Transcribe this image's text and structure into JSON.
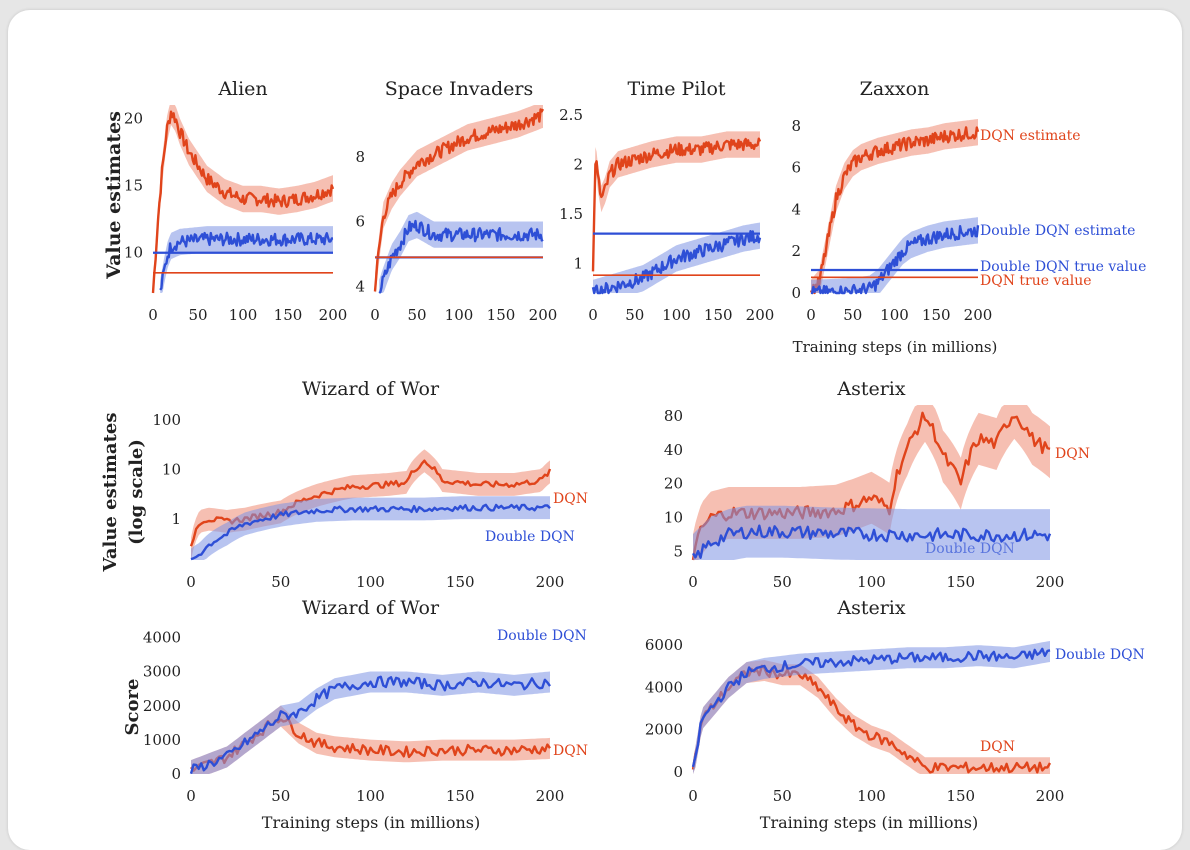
{
  "colors": {
    "dqn": "#e0441b",
    "ddqn": "#2e4fd6",
    "dqn_band": "#ee8a72",
    "ddqn_band": "#7e93e4"
  },
  "labels": {
    "value_estimates": "Value estimates",
    "value_estimates_log_1": "Value estimates",
    "value_estimates_log_2": "(log scale)",
    "score": "Score",
    "training_steps": "Training steps (in millions)",
    "dqn_estimate": "DQN estimate",
    "ddqn_estimate": "Double DQN estimate",
    "ddqn_true": "Double DQN true value",
    "dqn_true": "DQN true value",
    "dqn": "DQN",
    "ddqn": "Double DQN"
  },
  "chart_data": [
    {
      "id": "alien",
      "type": "line",
      "title": "Alien",
      "ylabel": "Value estimates",
      "xlim": [
        0,
        200
      ],
      "ylim": [
        7,
        21
      ],
      "xticks": [
        "0",
        "50",
        "100",
        "150",
        "200"
      ],
      "yticks": [
        10,
        15,
        20
      ],
      "series": [
        {
          "x": [
            0,
            5,
            10,
            15,
            20,
            25,
            30,
            40,
            60,
            80,
            100,
            120,
            140,
            160,
            180,
            200
          ],
          "y": [
            7,
            12,
            16,
            19,
            20.5,
            20,
            19,
            17.5,
            15.5,
            14.5,
            14,
            14,
            13.8,
            14,
            14.3,
            14.8
          ]
        },
        {
          "x": [
            8,
            12,
            16,
            20,
            30,
            60,
            100,
            150,
            200
          ],
          "y": [
            7,
            8.5,
            9.8,
            10.5,
            10.8,
            11,
            11,
            11,
            11
          ]
        }
      ],
      "true_values": [
        10,
        8.5
      ]
    },
    {
      "id": "space_invaders",
      "type": "line",
      "title": "Space Invaders",
      "xlim": [
        0,
        200
      ],
      "ylim": [
        3.8,
        9.6
      ],
      "xticks": [
        "0",
        "50",
        "100",
        "150",
        "200"
      ],
      "yticks": [
        4,
        6,
        8
      ],
      "series": [
        {
          "x": [
            0,
            5,
            10,
            20,
            30,
            50,
            80,
            110,
            140,
            170,
            200
          ],
          "y": [
            4,
            5.2,
            6.2,
            6.8,
            7.2,
            7.8,
            8.2,
            8.6,
            8.8,
            9.0,
            9.3
          ]
        },
        {
          "x": [
            5,
            10,
            20,
            30,
            40,
            50,
            70,
            100,
            130,
            160,
            200
          ],
          "y": [
            3.8,
            4.2,
            4.9,
            5.3,
            5.8,
            5.9,
            5.6,
            5.6,
            5.6,
            5.6,
            5.6
          ]
        }
      ],
      "true_values": [
        4.9,
        4.9
      ]
    },
    {
      "id": "time_pilot",
      "type": "line",
      "title": "Time Pilot",
      "xlim": [
        0,
        200
      ],
      "ylim": [
        0.7,
        2.6
      ],
      "xticks": [
        "0",
        "50",
        "100",
        "150",
        "200"
      ],
      "yticks": [
        1.0,
        1.5,
        2.0,
        2.5
      ],
      "series": [
        {
          "x": [
            0,
            3,
            6,
            10,
            15,
            20,
            30,
            50,
            70,
            100,
            130,
            160,
            200
          ],
          "y": [
            0.9,
            2.1,
            1.85,
            1.65,
            1.75,
            1.9,
            2.0,
            2.05,
            2.1,
            2.15,
            2.15,
            2.2,
            2.2
          ]
        },
        {
          "x": [
            0,
            20,
            40,
            60,
            80,
            100,
            120,
            140,
            160,
            180,
            200
          ],
          "y": [
            0.7,
            0.75,
            0.8,
            0.85,
            0.95,
            1.05,
            1.1,
            1.15,
            1.2,
            1.25,
            1.28
          ]
        }
      ],
      "true_values": [
        1.3,
        0.88
      ]
    },
    {
      "id": "zaxxon",
      "type": "line",
      "title": "Zaxxon",
      "xlim": [
        0,
        200
      ],
      "ylim": [
        0,
        9
      ],
      "xticks": [
        "0",
        "50",
        "100",
        "150",
        "200"
      ],
      "yticks": [
        0,
        2,
        4,
        6,
        8
      ],
      "series": [
        {
          "x": [
            0,
            10,
            20,
            30,
            40,
            50,
            60,
            80,
            100,
            120,
            140,
            160,
            180,
            200
          ],
          "y": [
            0,
            0.5,
            2.5,
            4.5,
            5.6,
            6.2,
            6.5,
            6.8,
            7.0,
            7.2,
            7.3,
            7.5,
            7.6,
            7.7
          ]
        },
        {
          "x": [
            0,
            30,
            50,
            70,
            80,
            90,
            100,
            110,
            120,
            140,
            160,
            180,
            200
          ],
          "y": [
            0,
            0.05,
            0.1,
            0.2,
            0.5,
            1.0,
            1.5,
            2.0,
            2.3,
            2.6,
            2.8,
            2.9,
            3.0
          ]
        }
      ],
      "true_values": [
        1.1,
        0.75
      ]
    },
    {
      "id": "wizard_value",
      "type": "line",
      "title": "Wizard of Wor",
      "scale": "log",
      "ylabel": "Value estimates (log scale)",
      "xlim": [
        0,
        200
      ],
      "ylim": [
        0.15,
        200
      ],
      "xticks": [
        "0",
        "50",
        "100",
        "150",
        "200"
      ],
      "yticks": [
        1,
        10,
        100
      ],
      "series": [
        {
          "name": "DQN",
          "x": [
            0,
            5,
            10,
            20,
            30,
            50,
            70,
            90,
            110,
            120,
            130,
            140,
            160,
            180,
            195,
            200
          ],
          "y": [
            0.25,
            0.9,
            1.0,
            0.9,
            1.0,
            1.4,
            3,
            4.5,
            5,
            5.5,
            15,
            6,
            5,
            5,
            6,
            9
          ]
        },
        {
          "name": "Double DQN",
          "x": [
            0,
            5,
            10,
            20,
            30,
            50,
            70,
            90,
            110,
            130,
            150,
            170,
            200
          ],
          "y": [
            0.15,
            0.2,
            0.3,
            0.5,
            0.8,
            1.2,
            1.5,
            1.6,
            1.6,
            1.6,
            1.7,
            1.7,
            1.7
          ]
        }
      ]
    },
    {
      "id": "asterix_value",
      "type": "line",
      "title": "Asterix",
      "scale": "log",
      "xlim": [
        0,
        200
      ],
      "ylim": [
        4.2,
        100
      ],
      "xticks": [
        "0",
        "50",
        "100",
        "150",
        "200"
      ],
      "yticks": [
        5,
        10,
        20,
        40,
        80
      ],
      "series": [
        {
          "name": "DQN",
          "x": [
            0,
            5,
            10,
            20,
            40,
            60,
            80,
            90,
            100,
            110,
            120,
            130,
            140,
            150,
            160,
            170,
            180,
            190,
            200
          ],
          "y": [
            4.2,
            8,
            10,
            11,
            11,
            11,
            11.5,
            13,
            15,
            12,
            40,
            80,
            35,
            20,
            50,
            45,
            85,
            50,
            38
          ]
        },
        {
          "name": "Double DQN",
          "x": [
            0,
            5,
            10,
            20,
            30,
            50,
            80,
            120,
            160,
            200
          ],
          "y": [
            4.2,
            5,
            6,
            7,
            7.5,
            7.5,
            7.2,
            7.0,
            7.0,
            7.0
          ]
        }
      ]
    },
    {
      "id": "wizard_score",
      "type": "line",
      "title": "Wizard of Wor",
      "ylabel": "Score",
      "xlabel": "Training steps (in millions)",
      "xlim": [
        0,
        200
      ],
      "ylim": [
        0,
        4400
      ],
      "xticks": [
        "0",
        "50",
        "100",
        "150",
        "200"
      ],
      "yticks": [
        0,
        1000,
        2000,
        3000,
        4000
      ],
      "series": [
        {
          "name": "DQN",
          "x": [
            0,
            10,
            20,
            30,
            40,
            50,
            60,
            70,
            80,
            100,
            120,
            140,
            160,
            180,
            200
          ],
          "y": [
            100,
            300,
            500,
            900,
            1300,
            1700,
            1200,
            900,
            800,
            700,
            650,
            700,
            700,
            700,
            750
          ]
        },
        {
          "name": "Double DQN",
          "x": [
            0,
            10,
            20,
            30,
            40,
            50,
            60,
            70,
            80,
            100,
            120,
            140,
            160,
            180,
            200
          ],
          "y": [
            100,
            300,
            500,
            900,
            1300,
            1700,
            1800,
            2200,
            2500,
            2700,
            2700,
            2600,
            2700,
            2600,
            2700
          ]
        }
      ]
    },
    {
      "id": "asterix_score",
      "type": "line",
      "title": "Asterix",
      "xlabel": "Training steps (in millions)",
      "xlim": [
        0,
        200
      ],
      "ylim": [
        -100,
        7000
      ],
      "xticks": [
        "0",
        "50",
        "100",
        "150",
        "200"
      ],
      "yticks": [
        0,
        2000,
        4000,
        6000
      ],
      "series": [
        {
          "name": "DQN",
          "x": [
            0,
            5,
            10,
            20,
            30,
            40,
            50,
            60,
            70,
            80,
            90,
            100,
            110,
            120,
            130,
            150,
            200
          ],
          "y": [
            0,
            2500,
            3000,
            4000,
            4700,
            4800,
            4600,
            4600,
            4000,
            3000,
            2200,
            1700,
            1400,
            800,
            200,
            200,
            200
          ]
        },
        {
          "name": "Double DQN",
          "x": [
            0,
            5,
            10,
            20,
            30,
            40,
            50,
            60,
            80,
            100,
            120,
            140,
            160,
            180,
            200
          ],
          "y": [
            0,
            2500,
            3000,
            4000,
            4700,
            4900,
            5000,
            5100,
            5200,
            5300,
            5400,
            5400,
            5500,
            5400,
            5700
          ]
        }
      ]
    }
  ]
}
